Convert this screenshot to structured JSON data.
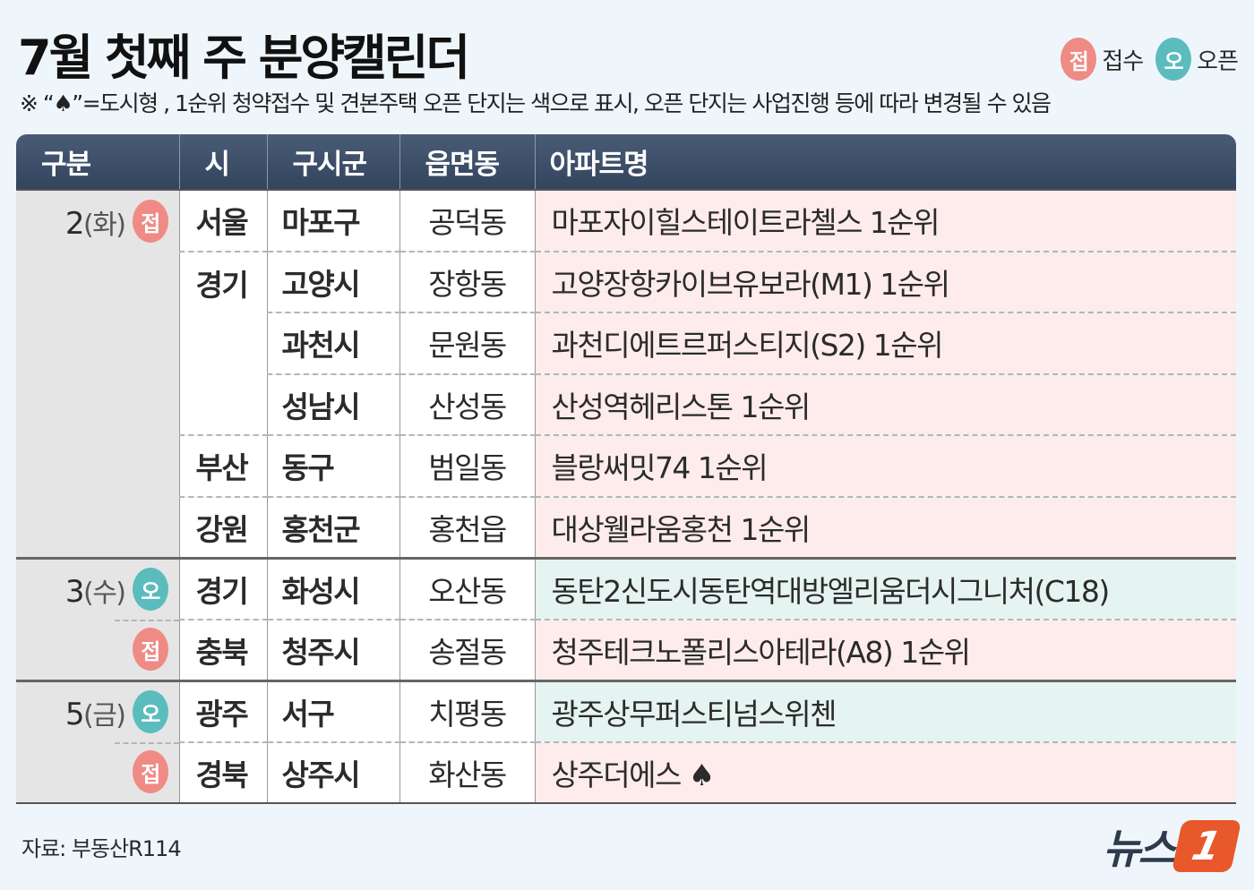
{
  "title": "7월 첫째 주 분양캘린더",
  "legend": {
    "receipt_badge": "접",
    "receipt_label": "접수",
    "open_badge": "오",
    "open_label": "오픈"
  },
  "note": "※ “♠”=도시형 , 1순위 청약접수 및 견본주택 오픈 단지는 색으로  표시, 오픈 단지는 사업진행 등에 따라 변경될 수 있음",
  "columns": [
    "구분",
    "시",
    "구시군",
    "읍면동",
    "아파트명"
  ],
  "groups": [
    {
      "day": "2",
      "weekday": "(화)"
    },
    {
      "day": "3",
      "weekday": "(수)"
    },
    {
      "day": "5",
      "weekday": "(금)"
    }
  ],
  "rows": [
    {
      "badge": "접",
      "si": "서울",
      "gu": "마포구",
      "dong": "공덕동",
      "apt": "마포자이힐스테이트라첼스 1순위",
      "type": "receipt"
    },
    {
      "si": "경기",
      "gu": "고양시",
      "dong": "장항동",
      "apt": "고양장항카이브유보라(M1) 1순위",
      "type": "receipt"
    },
    {
      "gu": "과천시",
      "dong": "문원동",
      "apt": "과천디에트르퍼스티지(S2) 1순위",
      "type": "receipt"
    },
    {
      "gu": "성남시",
      "dong": "산성동",
      "apt": "산성역헤리스톤 1순위",
      "type": "receipt"
    },
    {
      "si": "부산",
      "gu": "동구",
      "dong": "범일동",
      "apt": "블랑써밋74 1순위",
      "type": "receipt"
    },
    {
      "si": "강원",
      "gu": "홍천군",
      "dong": "홍천읍",
      "apt": "대상웰라움홍천 1순위",
      "type": "receipt"
    },
    {
      "badge": "오",
      "si": "경기",
      "gu": "화성시",
      "dong": "오산동",
      "apt": "동탄2신도시동탄역대방엘리움더시그니처(C18)",
      "type": "open"
    },
    {
      "badge": "접",
      "si": "충북",
      "gu": "청주시",
      "dong": "송절동",
      "apt": "청주테크노폴리스아테라(A8) 1순위",
      "type": "receipt"
    },
    {
      "badge": "오",
      "si": "광주",
      "gu": "서구",
      "dong": "치평동",
      "apt": "광주상무퍼스티넘스위첸",
      "type": "open"
    },
    {
      "badge": "접",
      "si": "경북",
      "gu": "상주시",
      "dong": "화산동",
      "apt": "상주더에스 ♠",
      "type": "receipt"
    }
  ],
  "source": "자료: 부동산R114",
  "logo": "뉴스1",
  "colors": {
    "receipt": "#ef8a85",
    "open": "#5bbcbd",
    "receipt_row": "#fdeceb",
    "open_row": "#e5f3f1",
    "header": "#3a4b65"
  }
}
